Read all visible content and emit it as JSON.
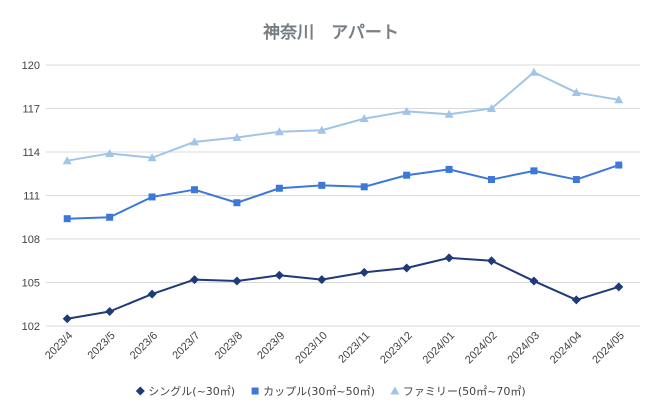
{
  "chart_data": {
    "type": "line",
    "title": "神奈川　アパート",
    "categories": [
      "2023/4",
      "2023/5",
      "2023/6",
      "2023/7",
      "2023/8",
      "2023/9",
      "2023/10",
      "2023/11",
      "2023/12",
      "2024/01",
      "2024/02",
      "2024/03",
      "2024/04",
      "2024/05"
    ],
    "series": [
      {
        "name": "シングル(~30㎡)",
        "color": "#1f3a78",
        "marker": "diamond",
        "values": [
          102.5,
          103.0,
          104.2,
          105.2,
          105.1,
          105.5,
          105.2,
          105.7,
          106.0,
          106.7,
          106.5,
          105.1,
          103.8,
          104.7
        ]
      },
      {
        "name": "カップル(30㎡~50㎡)",
        "color": "#3d78d8",
        "marker": "square",
        "values": [
          109.4,
          109.5,
          110.9,
          111.4,
          110.5,
          111.5,
          111.7,
          111.6,
          112.4,
          112.8,
          112.1,
          112.7,
          112.1,
          113.1
        ]
      },
      {
        "name": "ファミリー(50㎡~70㎡)",
        "color": "#9fc5e8",
        "marker": "triangle",
        "values": [
          113.4,
          113.9,
          113.6,
          114.7,
          115.0,
          115.4,
          115.5,
          116.3,
          116.8,
          116.6,
          117.0,
          119.5,
          118.1,
          117.6
        ]
      }
    ],
    "yticks": [
      "120",
      "117",
      "114",
      "111",
      "108",
      "105",
      "102"
    ],
    "ylim": [
      102,
      120
    ],
    "grid": true,
    "legend_position": "bottom"
  }
}
